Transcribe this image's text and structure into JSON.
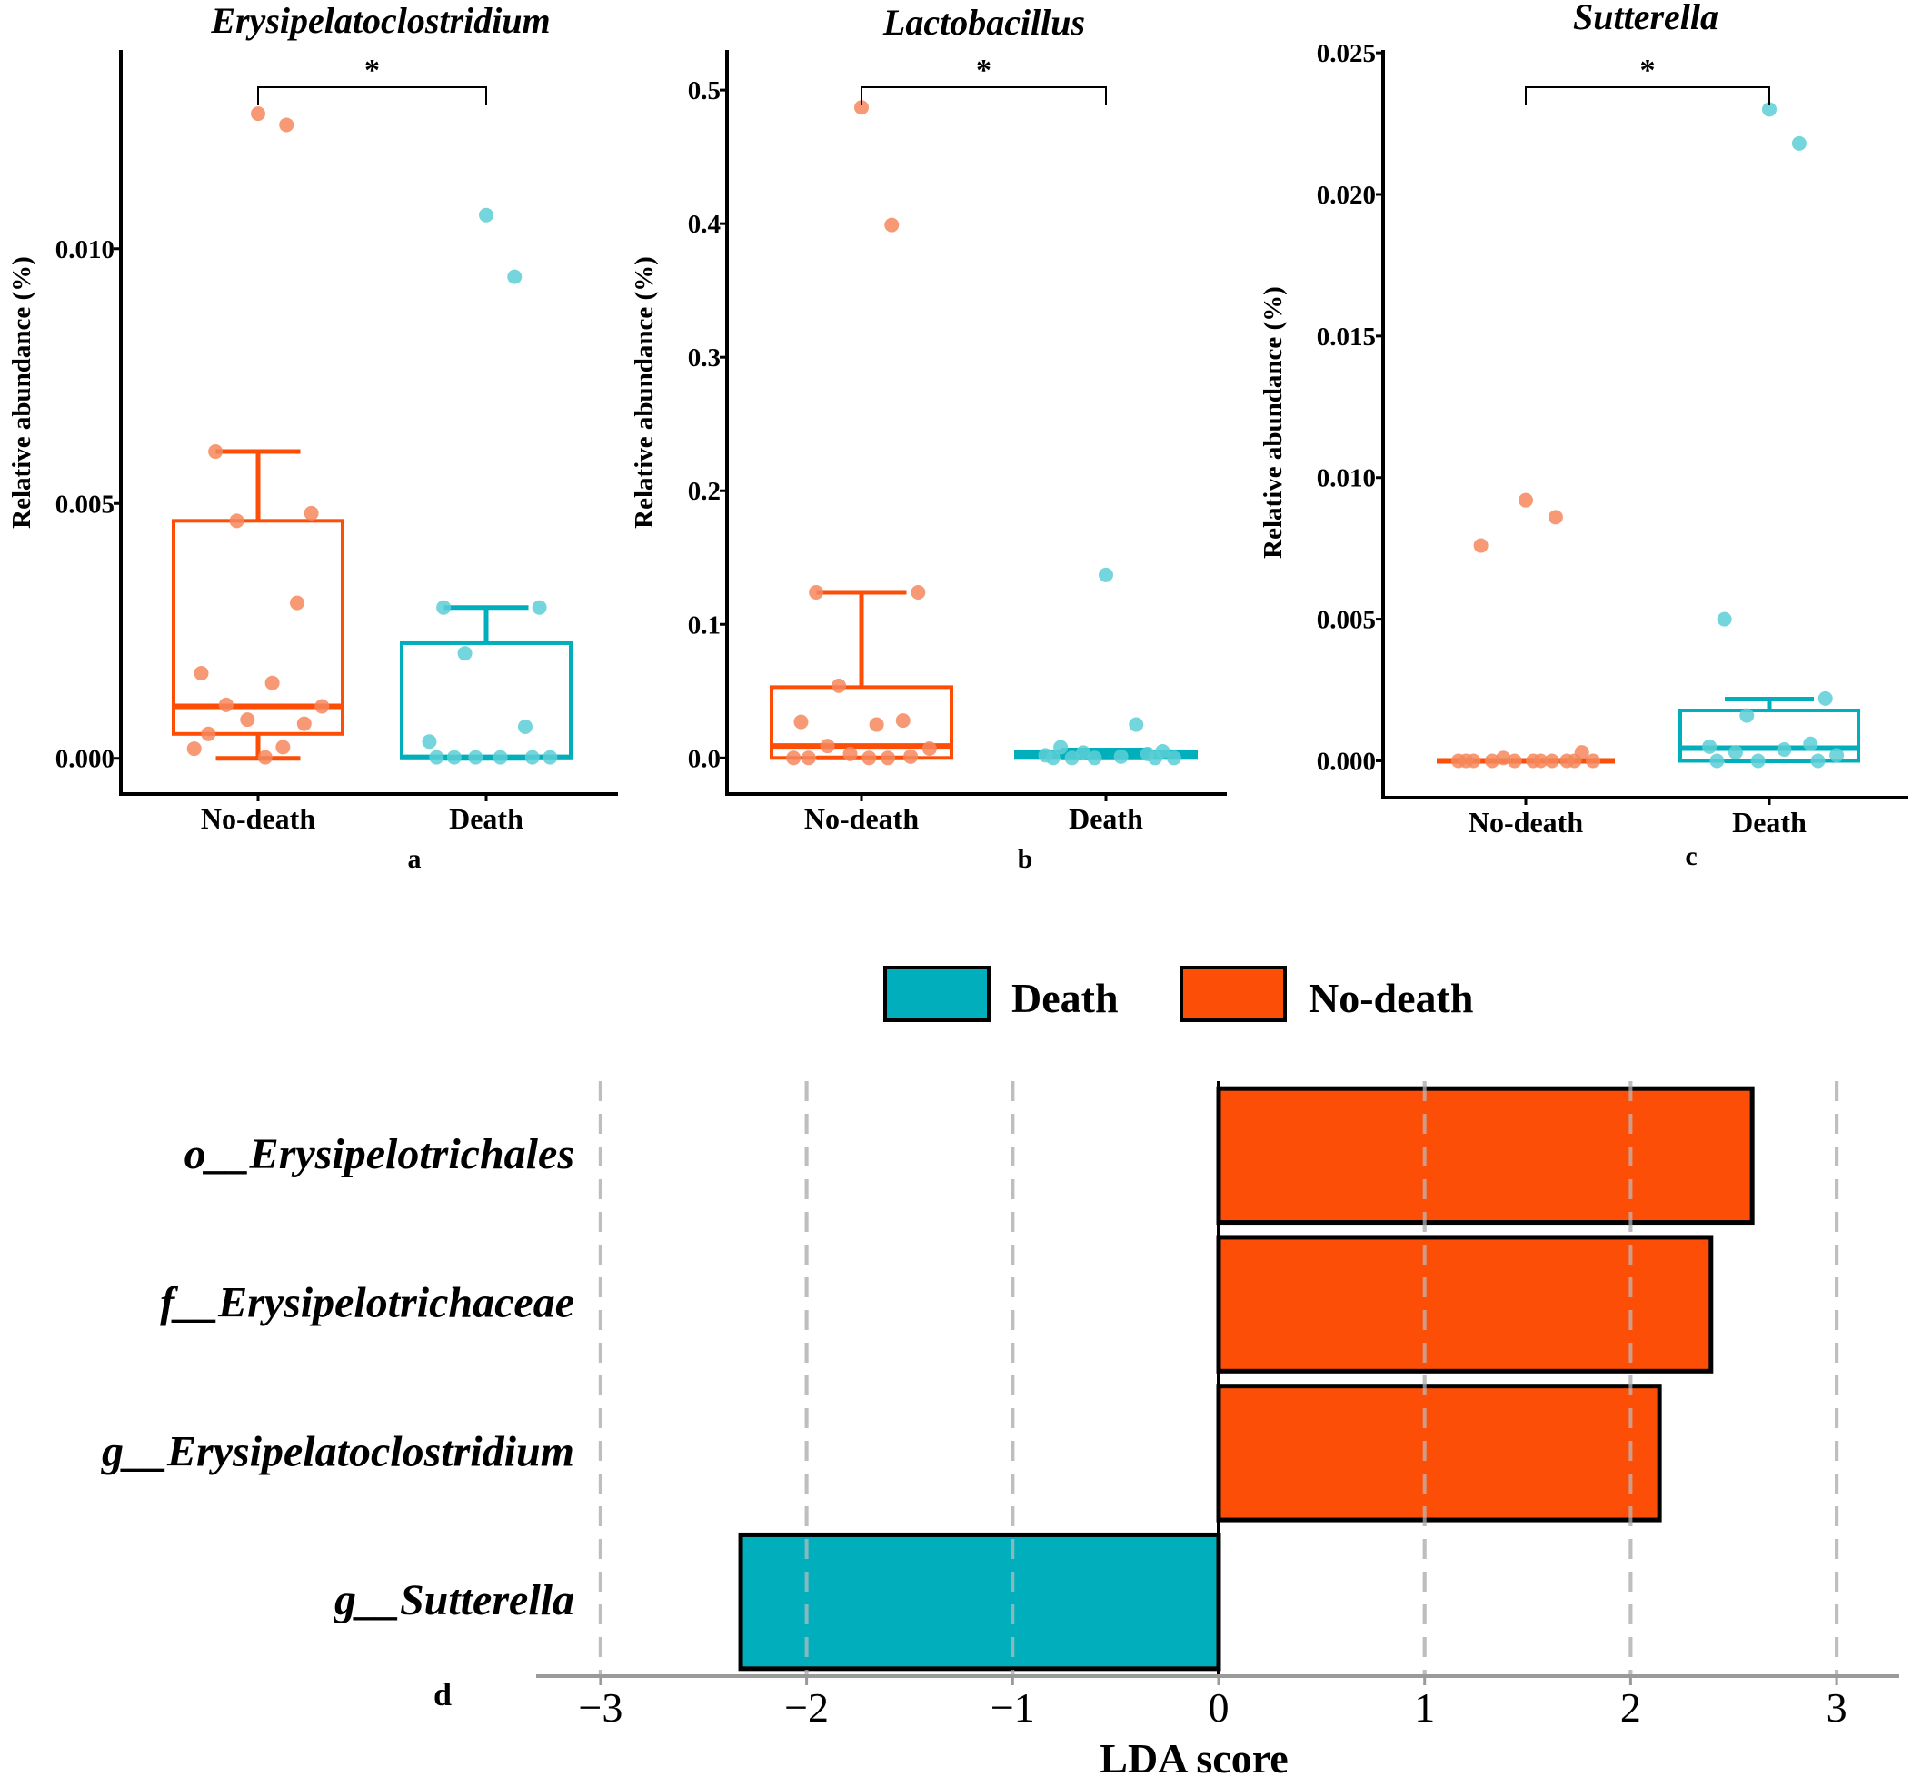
{
  "colors": {
    "death": "#00AFBB",
    "no_death": "#FC4E07",
    "no_death_point": "#F4875C",
    "death_point": "#5CCFD6",
    "grid": "#BEBEBE"
  },
  "chart_data": [
    {
      "type": "box",
      "title": "Erysipelatoclostridium",
      "ylabel": "Relative abundance (%)",
      "panel_label": "a",
      "categories": [
        "No-death",
        "Death"
      ],
      "significance": "*",
      "ylim": [
        -0.0007,
        0.0139
      ],
      "yticks": [
        0.0,
        0.005,
        0.01
      ],
      "ytick_labels": [
        "0.000",
        "0.005",
        "0.010"
      ],
      "boxes": [
        {
          "name": "No-death",
          "q1": 0.00048,
          "median": 0.00102,
          "q3": 0.00466,
          "whisker_low": 0.0,
          "whisker_high": 0.00602
        },
        {
          "name": "Death",
          "q1": 0.0,
          "median": 2e-05,
          "q3": 0.00226,
          "whisker_low": 0.0,
          "whisker_high": 0.00296
        }
      ],
      "points": [
        [
          0.01265,
          0.01243,
          0.00602,
          0.00481,
          0.00466,
          0.00305,
          0.00167,
          0.00148,
          0.00105,
          0.00102,
          0.00076,
          0.00068,
          0.00048,
          0.00022,
          0.00019,
          2e-05
        ],
        [
          0.01066,
          0.00945,
          0.00296,
          0.00296,
          0.00206,
          0.00062,
          0.00033,
          2e-05,
          2e-05,
          2e-05,
          2e-05,
          2e-05,
          2e-05
        ]
      ]
    },
    {
      "type": "box",
      "title": "Lactobacillus",
      "ylabel": "Relative abundance (%)",
      "panel_label": "b",
      "categories": [
        "No-death",
        "Death"
      ],
      "significance": "*",
      "ylim": [
        -0.027,
        0.53
      ],
      "yticks": [
        0.0,
        0.1,
        0.2,
        0.3,
        0.4,
        0.5
      ],
      "ytick_labels": [
        "0.0",
        "0.1",
        "0.2",
        "0.3",
        "0.4",
        "0.5"
      ],
      "boxes": [
        {
          "name": "No-death",
          "q1": 0.0,
          "median": 0.009,
          "q3": 0.053,
          "whisker_low": 0.0,
          "whisker_high": 0.124
        },
        {
          "name": "Death",
          "q1": 0.0,
          "median": 0.002,
          "q3": 0.005,
          "whisker_low": 0.0,
          "whisker_high": 0.006
        }
      ],
      "points": [
        [
          0.487,
          0.399,
          0.124,
          0.124,
          0.054,
          0.028,
          0.027,
          0.025,
          0.009,
          0.007,
          0.003,
          0.001,
          0.0,
          0.0,
          0.0,
          0.0
        ],
        [
          0.137,
          0.025,
          0.008,
          0.005,
          0.004,
          0.003,
          0.002,
          0.001,
          0.0,
          0.0,
          0.0,
          0.0,
          0.0
        ]
      ]
    },
    {
      "type": "box",
      "title": "Sutterella",
      "ylabel": "Relative abundance (%)",
      "panel_label": "c",
      "categories": [
        "No-death",
        "Death"
      ],
      "significance": "*",
      "ylim": [
        -0.0013,
        0.0251
      ],
      "yticks": [
        0.0,
        0.005,
        0.01,
        0.015,
        0.02,
        0.025
      ],
      "ytick_labels": [
        "0.000",
        "0.005",
        "0.010",
        "0.015",
        "0.020",
        "0.025"
      ],
      "boxes": [
        {
          "name": "No-death",
          "q1": 0.0,
          "median": 0.0,
          "q3": 0.0,
          "whisker_low": 0.0,
          "whisker_high": 0.0
        },
        {
          "name": "Death",
          "q1": 0.0,
          "median": 0.00045,
          "q3": 0.00178,
          "whisker_low": 0.0,
          "whisker_high": 0.00218
        }
      ],
      "points": [
        [
          0.0092,
          0.0086,
          0.0076,
          0.0003,
          0.0001,
          0.0,
          0.0,
          0.0,
          0.0,
          0.0,
          0.0,
          0.0,
          0.0,
          0.0,
          0.0,
          0.0
        ],
        [
          0.023,
          0.0218,
          0.005,
          0.0022,
          0.0016,
          0.0006,
          0.0005,
          0.0004,
          0.0003,
          0.0002,
          0.0,
          0.0,
          0.0
        ]
      ]
    },
    {
      "type": "bar",
      "orientation": "horizontal",
      "panel_label": "d",
      "xlabel": "LDA score",
      "xlim": [
        -3.3,
        3.3
      ],
      "xticks": [
        -3,
        -2,
        -1,
        0,
        1,
        2,
        3
      ],
      "xtick_labels": [
        "−3",
        "−2",
        "−1",
        "0",
        "1",
        "2",
        "3"
      ],
      "legend": [
        "Death",
        "No-death"
      ],
      "legend_position": "top",
      "categories": [
        "o__Erysipelotrichales",
        "f__Erysipelotrichaceae",
        "g__Erysipelatoclostridium",
        "g__Sutterella"
      ],
      "values": [
        2.59,
        2.39,
        2.14,
        -2.32
      ],
      "groups": [
        "No-death",
        "No-death",
        "No-death",
        "Death"
      ]
    }
  ]
}
